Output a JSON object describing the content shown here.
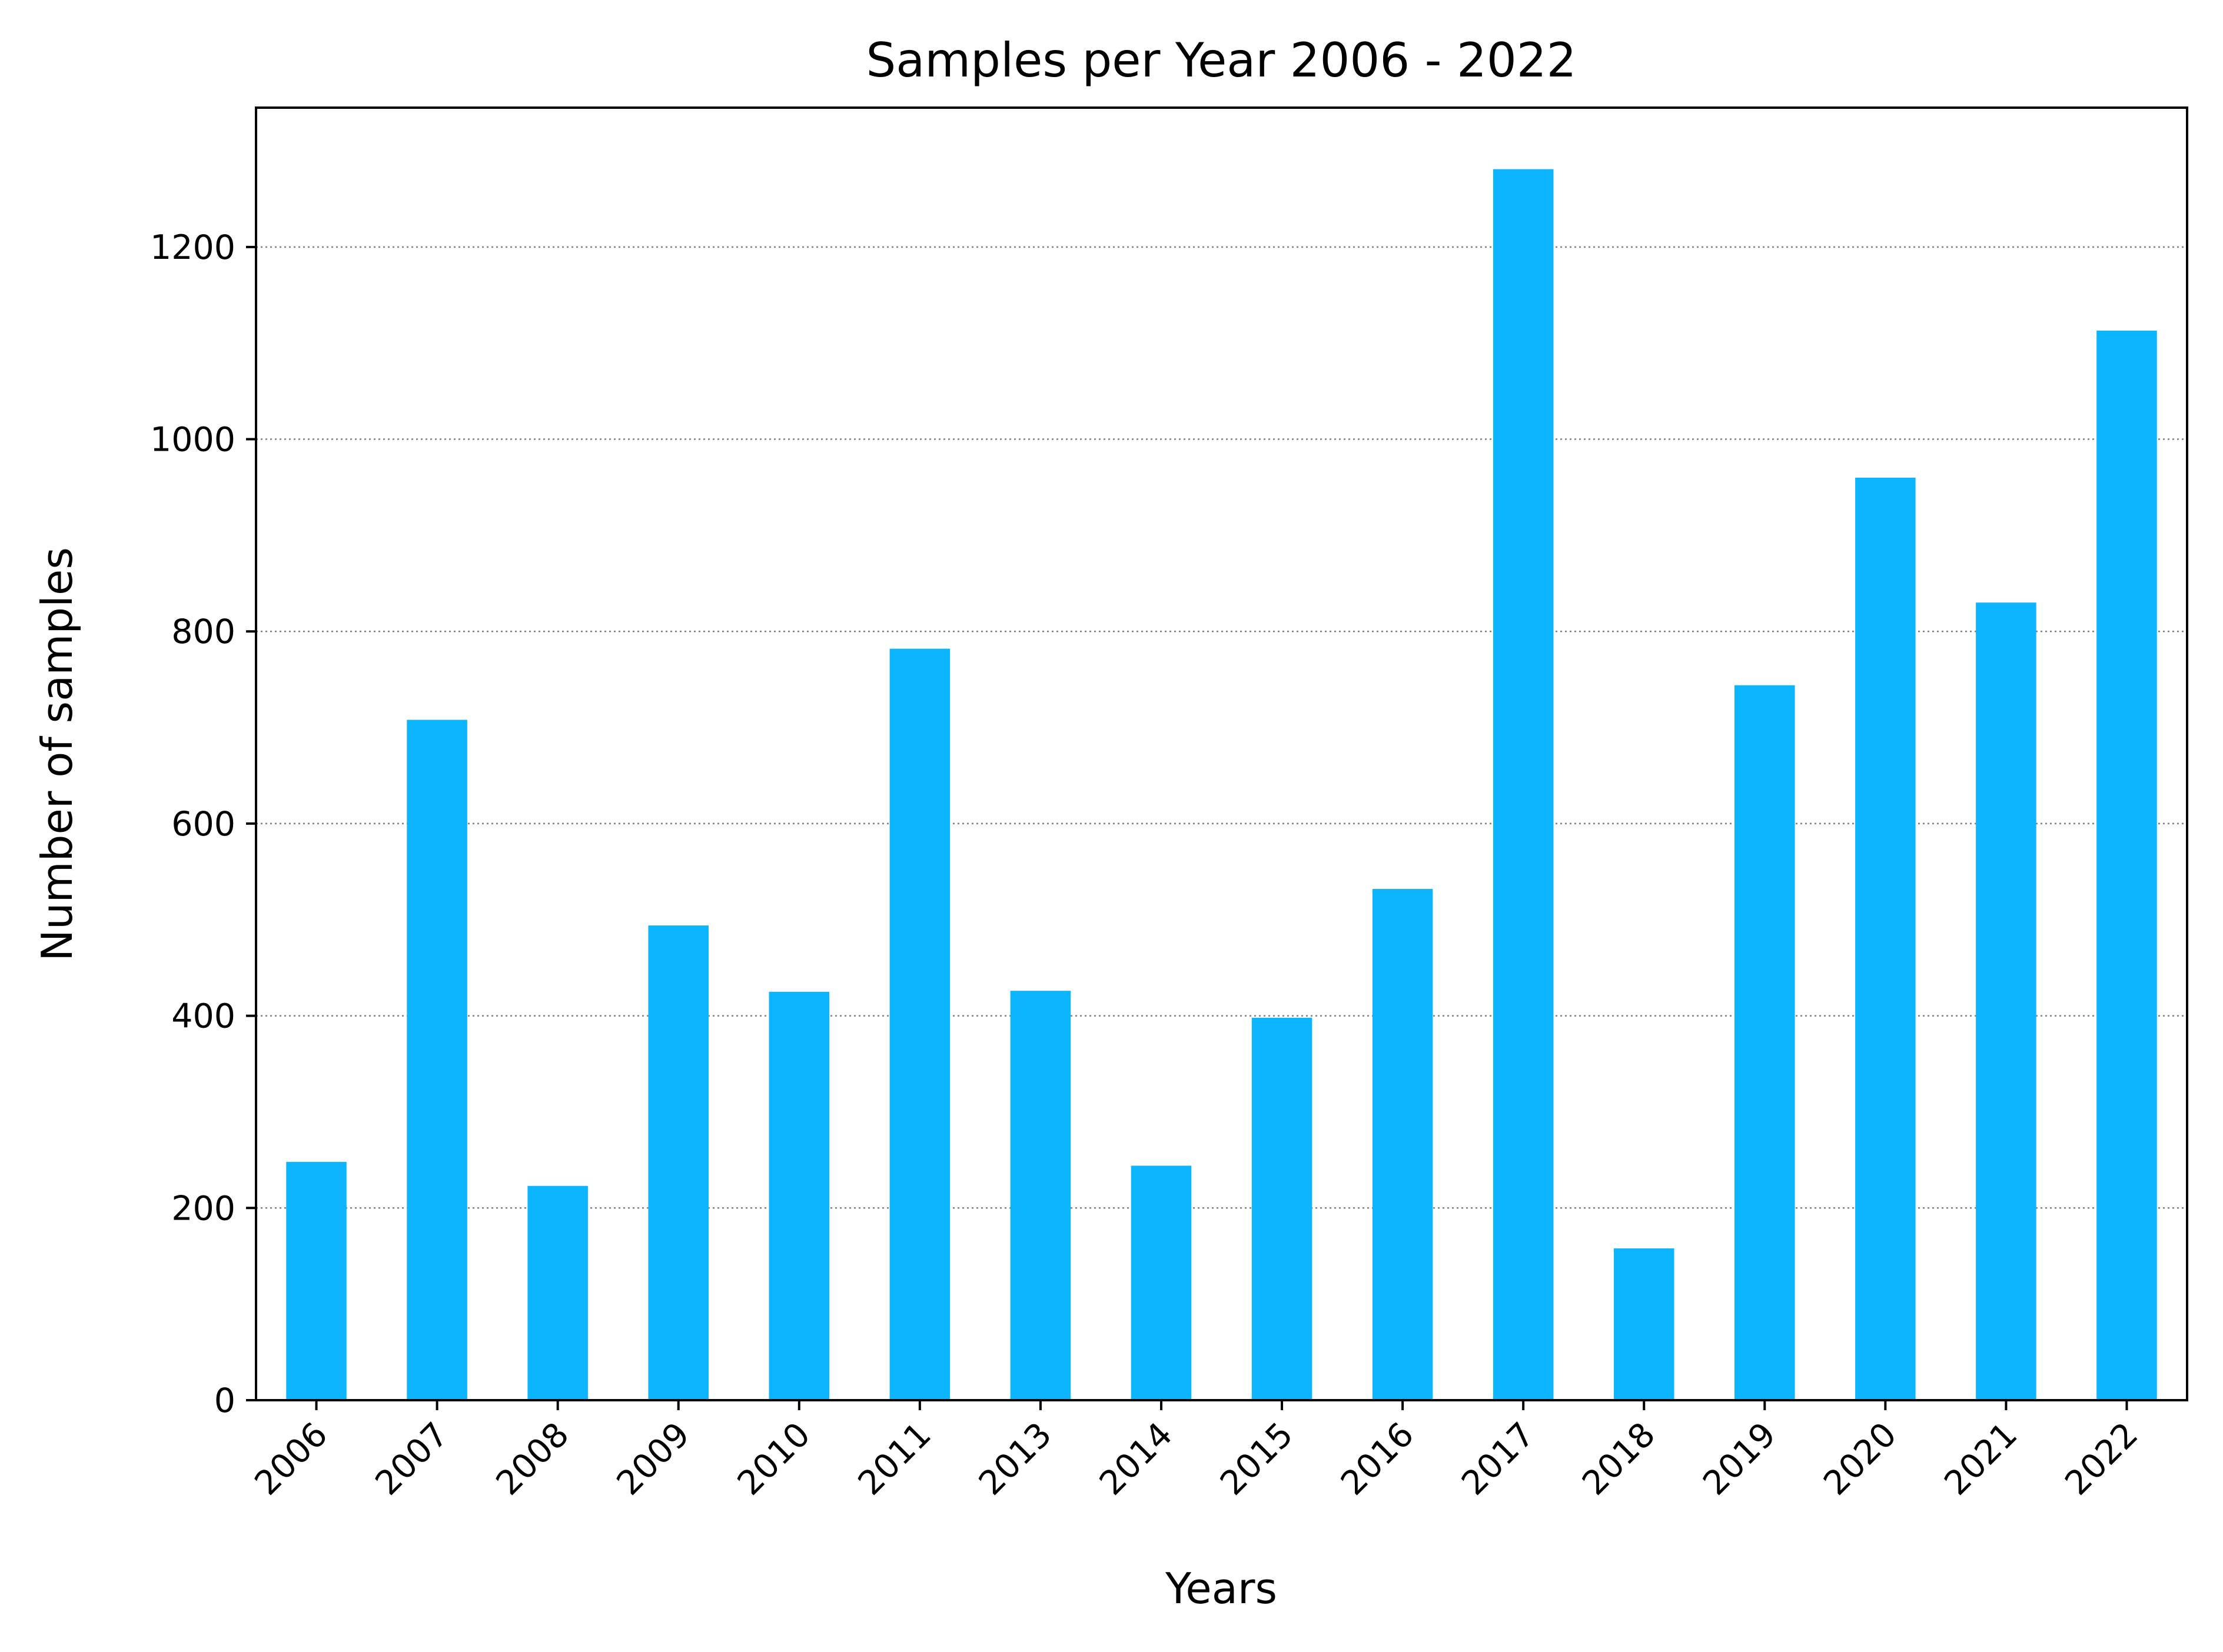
{
  "chart_data": {
    "type": "bar",
    "title": "Samples per Year 2006 - 2022",
    "xlabel": "Years",
    "ylabel": "Number of samples",
    "categories": [
      "2006",
      "2007",
      "2008",
      "2009",
      "2010",
      "2011",
      "2013",
      "2014",
      "2015",
      "2016",
      "2017",
      "2018",
      "2019",
      "2020",
      "2021",
      "2022"
    ],
    "values": [
      248,
      708,
      223,
      494,
      425,
      782,
      426,
      244,
      398,
      532,
      1281,
      158,
      744,
      960,
      830,
      1113
    ],
    "ylim": [
      0,
      1345
    ],
    "yticks": [
      "0",
      "200",
      "400",
      "600",
      "800",
      "1000",
      "1200"
    ],
    "ytick_values": [
      0,
      200,
      400,
      600,
      800,
      1000,
      1200
    ],
    "bar_color": "#0db4fe",
    "grid": "y, dotted",
    "legend": "none",
    "xtick_rotation_deg": 45
  }
}
